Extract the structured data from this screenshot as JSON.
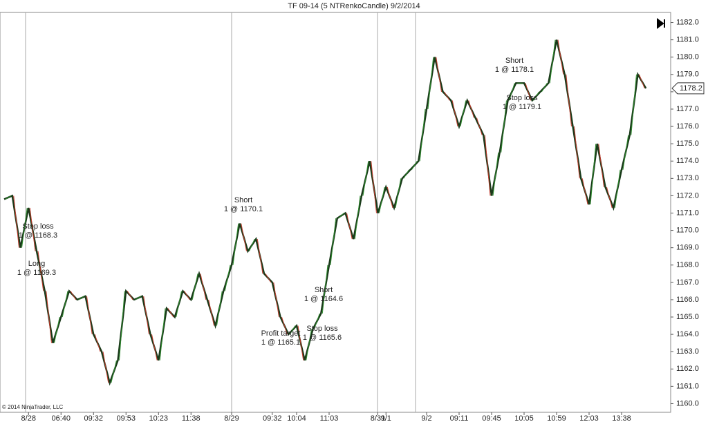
{
  "chart_data": {
    "type": "line",
    "title": "TF 09-14 (5 NTRenkoCandle)  9/2/2014",
    "copyright": "© 2014 NinjaTrader, LLC",
    "categories": [
      null,
      null,
      null,
      "8/28",
      null,
      null,
      null,
      "06:40",
      null,
      null,
      null,
      "09:32",
      null,
      null,
      null,
      "09:53",
      null,
      null,
      null,
      "10:23",
      null,
      null,
      null,
      "11:38",
      null,
      null,
      null,
      null,
      "8/29",
      null,
      null,
      null,
      null,
      "09:32",
      null,
      null,
      "10:04",
      null,
      null,
      null,
      "11:03",
      null,
      null,
      null,
      null,
      null,
      "8/31",
      "9/1",
      null,
      null,
      null,
      null,
      "9/2",
      null,
      null,
      null,
      "09:11",
      null,
      null,
      null,
      "09:45",
      null,
      null,
      null,
      "10:05",
      null,
      null,
      null,
      "10:59",
      null,
      null,
      null,
      "12:03",
      null,
      null,
      null,
      "13:38",
      null,
      null,
      null
    ],
    "series": [
      {
        "name": "TF 09-14",
        "color": "#1a3a1a",
        "values": [
          1171.8,
          1172,
          1169,
          1171.3,
          1168.8,
          1166.5,
          1163.5,
          1165,
          1166.5,
          1166,
          1166.2,
          1164,
          1163,
          1161.2,
          1162.5,
          1166.5,
          1166,
          1166.2,
          1164,
          1162.5,
          1165.5,
          1165,
          1166.5,
          1166,
          1167.5,
          1166,
          1164.5,
          1166.5,
          1168,
          1170.4,
          1168.8,
          1169.5,
          1167.5,
          1167,
          1165,
          1164,
          1164.5,
          1162.5,
          1164.3,
          1165.2,
          1168,
          1170.7,
          1171,
          1169.5,
          1172,
          1174,
          1171,
          1172.5,
          1171.3,
          1173,
          1173.5,
          1174,
          1177,
          1180,
          1178,
          1177.5,
          1176,
          1177.5,
          1176.5,
          1175.5,
          1172,
          1174.5,
          1177.5,
          1178.5,
          1178.5,
          1177.5,
          1178,
          1178.5,
          1181,
          1179,
          1176,
          1173,
          1171.5,
          1175,
          1172.5,
          1171.3,
          1173.5,
          1175.5,
          1179,
          1178.2
        ]
      }
    ],
    "last_price": 1178.2,
    "ylim": [
      1159.5,
      1182.5
    ],
    "yticks": [
      {
        "value": 1160,
        "label": "1160.0"
      },
      {
        "value": 1161,
        "label": "1161.0"
      },
      {
        "value": 1162,
        "label": "1162.0"
      },
      {
        "value": 1163,
        "label": "1163.0"
      },
      {
        "value": 1164,
        "label": "1164.0"
      },
      {
        "value": 1165,
        "label": "1165.0"
      },
      {
        "value": 1166,
        "label": "1166.0"
      },
      {
        "value": 1167,
        "label": "1167.0"
      },
      {
        "value": 1168,
        "label": "1168.0"
      },
      {
        "value": 1169,
        "label": "1169.0"
      },
      {
        "value": 1170,
        "label": "1170.0"
      },
      {
        "value": 1171,
        "label": "1171.0"
      },
      {
        "value": 1172,
        "label": "1172.0"
      },
      {
        "value": 1173,
        "label": "1173.0"
      },
      {
        "value": 1174,
        "label": "1174.0"
      },
      {
        "value": 1175,
        "label": "1175.0"
      },
      {
        "value": 1176,
        "label": "1176.0"
      },
      {
        "value": 1177,
        "label": "1177.0"
      },
      {
        "value": 1178,
        "label": "1178.0"
      },
      {
        "value": 1179,
        "label": "1179.0"
      },
      {
        "value": 1180,
        "label": "1180.0"
      },
      {
        "value": 1181,
        "label": "1181.0"
      },
      {
        "value": 1182,
        "label": "1182.0"
      }
    ],
    "annotations": [
      {
        "name": "Stop loss",
        "text": "1 @ 1168.3"
      },
      {
        "name": "Long",
        "text": "1 @ 1169.3"
      },
      {
        "name": "Short",
        "text": "1 @ 1170.1"
      },
      {
        "name": "Profit target",
        "text": "1 @ 1165.1"
      },
      {
        "name": "Short",
        "text": "1 @ 1164.6"
      },
      {
        "name": "Stop loss",
        "text": "1 @ 1165.6"
      },
      {
        "name": "Short",
        "text": "1 @ 1178.1"
      },
      {
        "name": "Stop loss",
        "text": "1 @ 1179.1"
      }
    ]
  }
}
